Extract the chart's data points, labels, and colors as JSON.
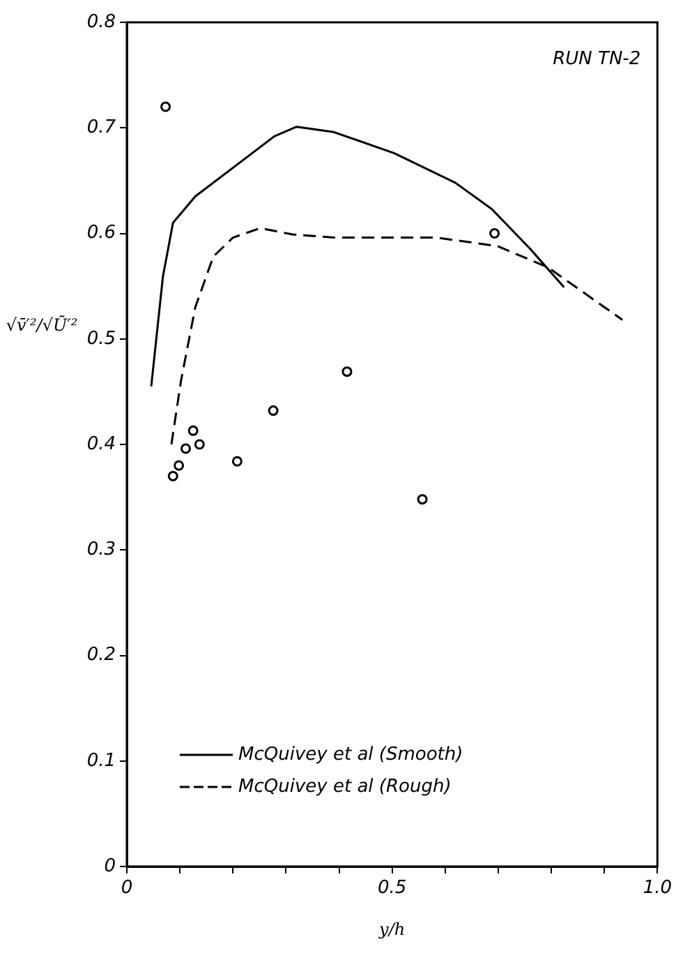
{
  "chart_data": {
    "type": "line",
    "xlabel": "y/h",
    "ylabel": "√v̄′²/√Ū′²",
    "annotations": [
      "RUN TN-2"
    ],
    "xlim": [
      0,
      1.0
    ],
    "ylim": [
      0,
      0.8
    ],
    "xticks": [
      0,
      {
        "value": 0.1,
        "label": null
      },
      {
        "value": 0.2,
        "label": null
      },
      {
        "value": 0.3,
        "label": null
      },
      {
        "value": 0.4,
        "label": null
      },
      0.5,
      {
        "value": 0.6,
        "label": null
      },
      {
        "value": 0.7,
        "label": null
      },
      {
        "value": 0.8,
        "label": null
      },
      {
        "value": 0.9,
        "label": null
      },
      {
        "value": 1.0,
        "label": "1.0"
      }
    ],
    "yticks": [
      0,
      0.1,
      0.2,
      0.3,
      0.4,
      0.5,
      0.6,
      0.7,
      0.8
    ],
    "grid": false,
    "legend": "bottom left",
    "series": [
      {
        "name": "McQuivey et al (Smooth)",
        "type": "line",
        "line_style": "solid",
        "marker": "none",
        "color": "#000000",
        "x": [
          0.046,
          0.068,
          0.087,
          0.129,
          0.278,
          0.32,
          0.39,
          0.504,
          0.619,
          0.688,
          0.759,
          0.824
        ],
        "values": [
          0.455,
          0.559,
          0.61,
          0.635,
          0.692,
          0.701,
          0.696,
          0.676,
          0.648,
          0.623,
          0.586,
          0.549
        ]
      },
      {
        "name": "McQuivey et al (Rough)",
        "type": "line",
        "line_style": "dashed",
        "marker": "none",
        "color": "#000000",
        "x": [
          0.084,
          0.102,
          0.129,
          0.163,
          0.2,
          0.252,
          0.312,
          0.391,
          0.583,
          0.698,
          0.793,
          0.934
        ],
        "values": [
          0.4,
          0.46,
          0.53,
          0.578,
          0.596,
          0.605,
          0.599,
          0.596,
          0.596,
          0.588,
          0.568,
          0.518
        ]
      },
      {
        "type": "scatter",
        "marker": "circle",
        "color": "#000000",
        "x": [
          0.073,
          0.693,
          0.087,
          0.098,
          0.111,
          0.125,
          0.137,
          0.208,
          0.276,
          0.415,
          0.557
        ],
        "values": [
          0.72,
          0.6,
          0.37,
          0.38,
          0.396,
          0.413,
          0.4,
          0.384,
          0.432,
          0.469,
          0.348
        ]
      }
    ]
  }
}
